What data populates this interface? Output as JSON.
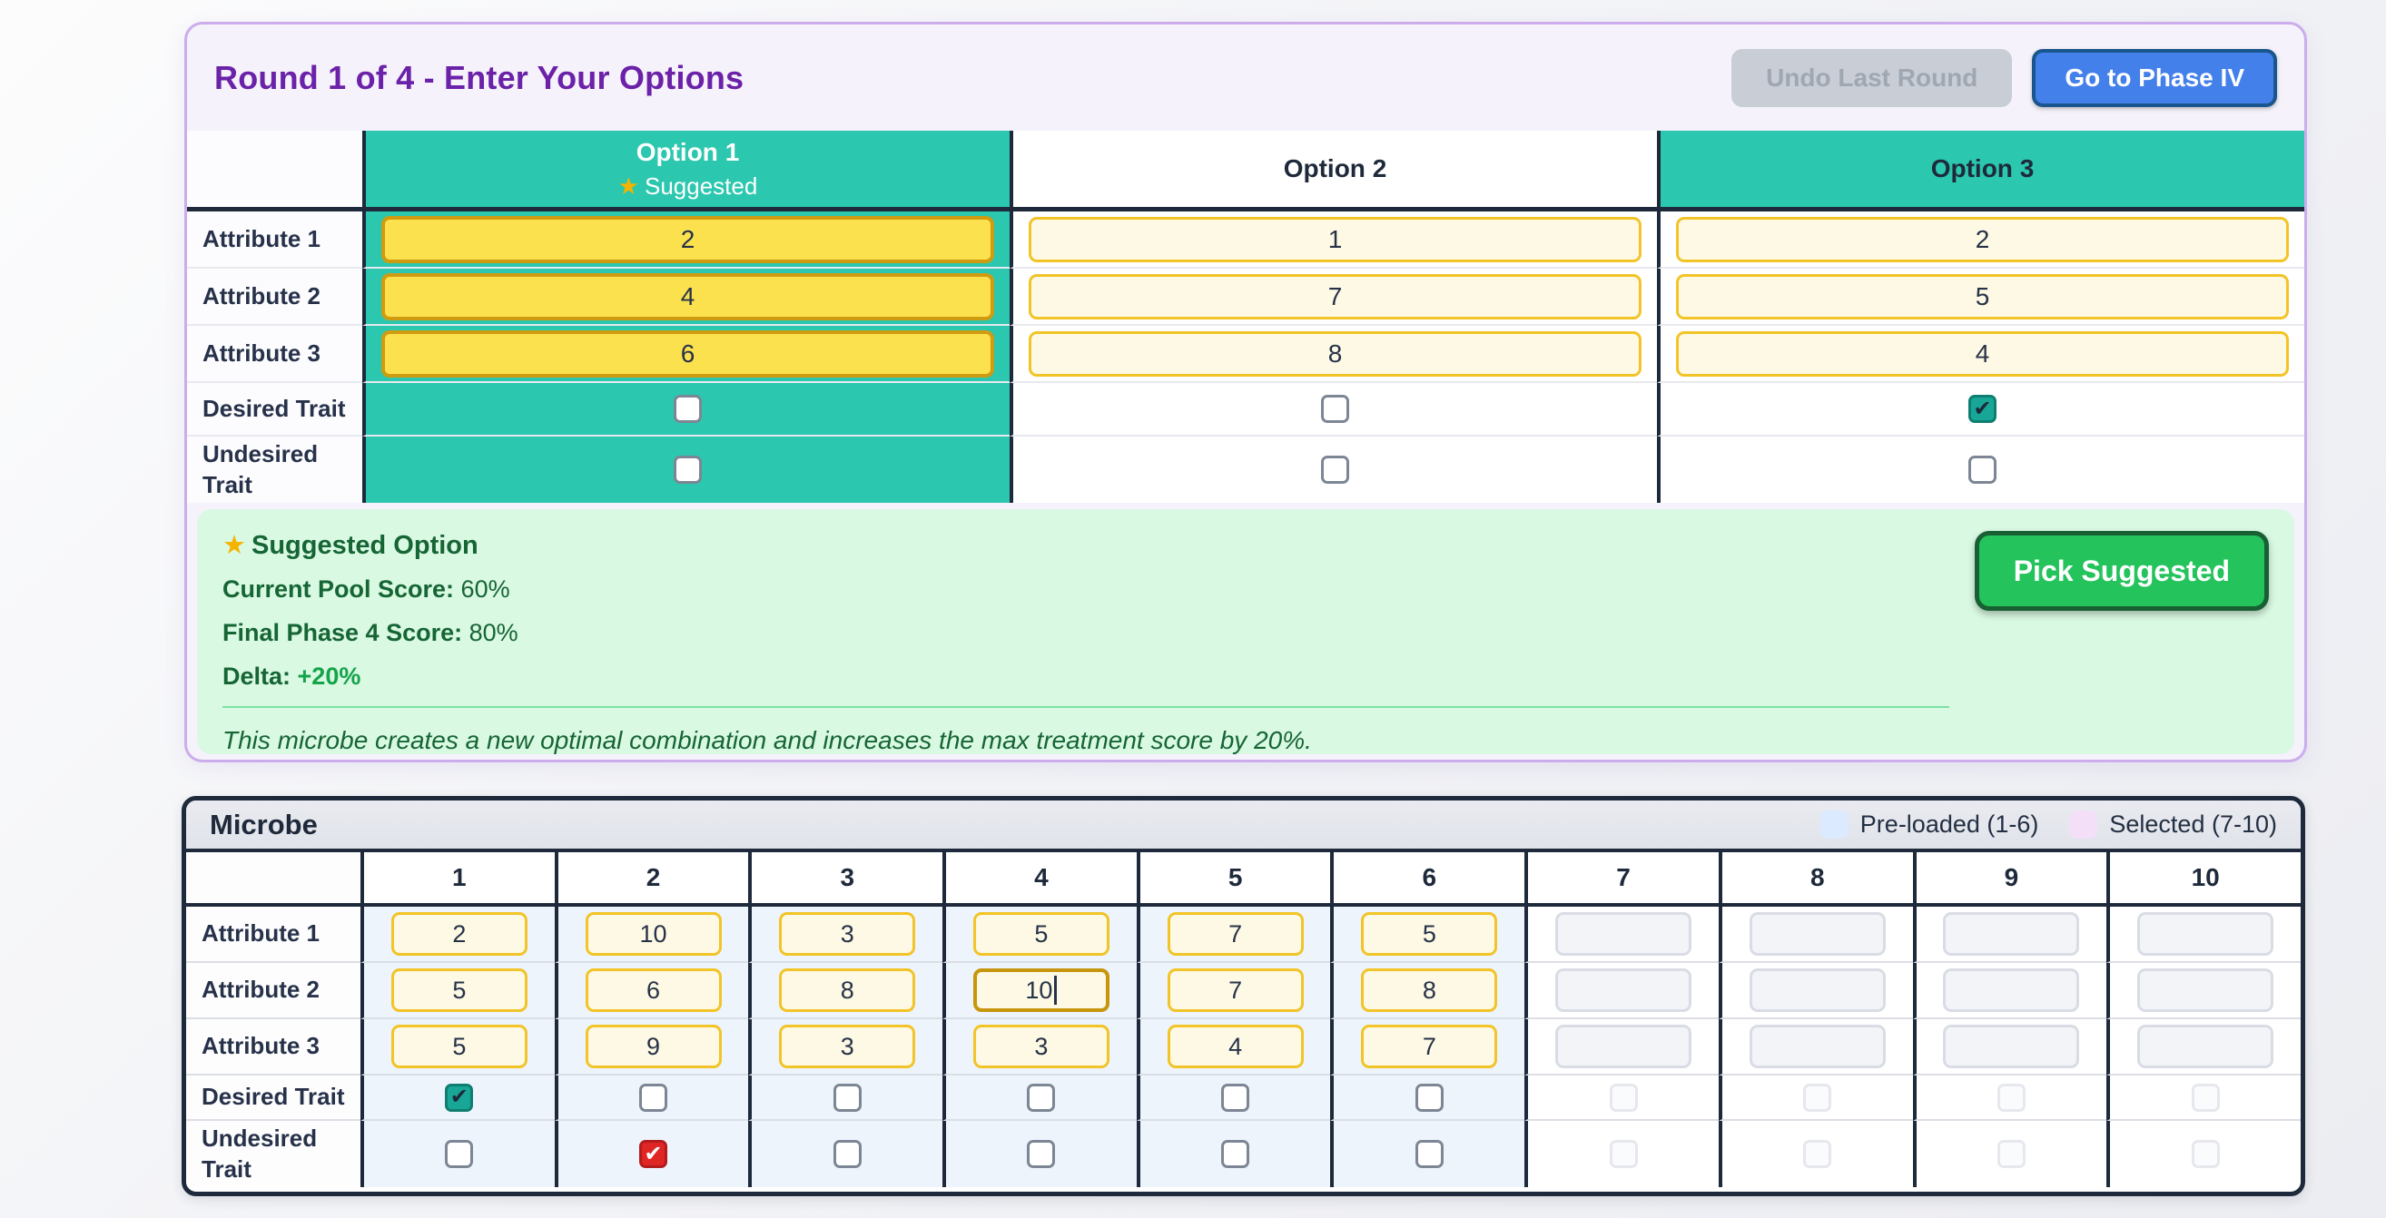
{
  "phase_panel": {
    "title": "Round 1 of 4 - Enter Your Options",
    "undo_button": "Undo Last Round",
    "goto_button": "Go to Phase IV",
    "table": {
      "row_labels": [
        "Attribute 1",
        "Attribute 2",
        "Attribute 3",
        "Desired Trait",
        "Undesired Trait"
      ],
      "options": [
        {
          "name": "Option 1",
          "star": "★",
          "badge": "Suggested",
          "suggested": true,
          "header_highlight": true,
          "values": [
            "2",
            "4",
            "6"
          ],
          "desired_checked": false,
          "undesired_checked": false
        },
        {
          "name": "Option 2",
          "star": "",
          "badge": "",
          "suggested": false,
          "header_highlight": false,
          "values": [
            "1",
            "7",
            "8"
          ],
          "desired_checked": false,
          "undesired_checked": false
        },
        {
          "name": "Option 3",
          "star": "",
          "badge": "",
          "suggested": false,
          "header_highlight": true,
          "values": [
            "2",
            "5",
            "4"
          ],
          "desired_checked": true,
          "undesired_checked": false
        }
      ]
    },
    "suggested_box": {
      "star": "★",
      "heading": "Suggested Option",
      "stats": [
        {
          "label": "Current Pool Score:",
          "value": "60%",
          "positive": false
        },
        {
          "label": "Final Phase 4 Score:",
          "value": "80%",
          "positive": false
        },
        {
          "label": "Delta:",
          "value": "+20%",
          "positive": true
        }
      ],
      "note": "This microbe creates a new optimal combination and increases the max treatment score by 20%.",
      "pick_button": "Pick Suggested"
    }
  },
  "microbe_panel": {
    "title": "Microbe",
    "legend": [
      {
        "label": "Pre-loaded (1-6)",
        "swatch_color": "#dbeafe"
      },
      {
        "label": "Selected (7-10)",
        "swatch_color": "#f3e0f8"
      }
    ],
    "column_headers": [
      "1",
      "2",
      "3",
      "4",
      "5",
      "6",
      "7",
      "8",
      "9",
      "10"
    ],
    "row_labels": [
      "Attribute 1",
      "Attribute 2",
      "Attribute 3",
      "Desired Trait",
      "Undesired Trait"
    ],
    "attribute_values": [
      [
        "2",
        "10",
        "3",
        "5",
        "7",
        "5",
        "",
        "",
        "",
        ""
      ],
      [
        "5",
        "6",
        "8",
        "10",
        "7",
        "8",
        "",
        "",
        "",
        ""
      ],
      [
        "5",
        "9",
        "3",
        "3",
        "4",
        "7",
        "",
        "",
        "",
        ""
      ]
    ],
    "preloaded_count": 6,
    "focused_cell": {
      "row": 1,
      "col": 3
    },
    "desired_checked_cols": [
      0
    ],
    "undesired_checked_cols": [
      1
    ]
  },
  "colors": {
    "teal_header": "#2bc7ae",
    "navy_border": "#1e2a3b",
    "title_purple": "#6b21a8",
    "gold_input_bg": "#fbe14e",
    "gold_input_border": "#cf9b11",
    "cream_input_bg": "#fdf9e4",
    "cream_input_border": "#f2c427",
    "suggest_box_bg": "#d9f9e3",
    "suggest_text_green": "#166534",
    "delta_green": "#16a34a",
    "pick_button_green": "#24c35c",
    "goto_button_blue": "#4480ea",
    "checked_teal": "#18a796",
    "checked_red": "#e02525",
    "preloaded_cell_blue": "#edf4fc"
  }
}
